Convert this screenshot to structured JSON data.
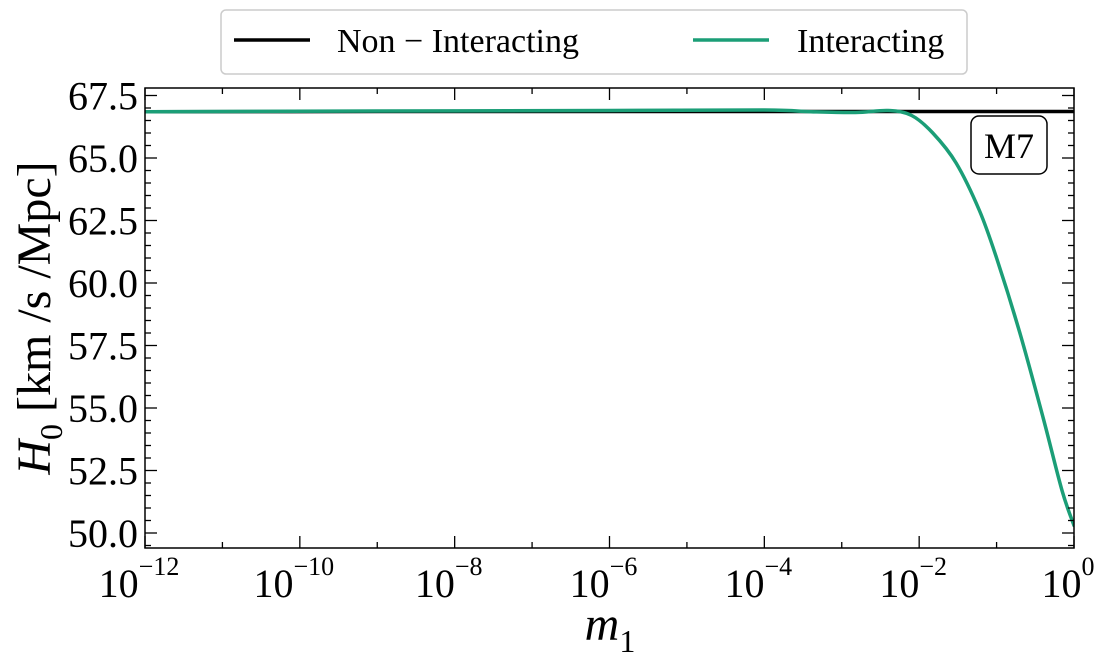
{
  "chart_data": {
    "type": "line",
    "xscale": "log",
    "xlim": [
      1e-12,
      1
    ],
    "ylim": [
      49.4,
      67.8
    ],
    "x_ticks": [
      {
        "base": "10",
        "exp": "−12"
      },
      {
        "base": "10",
        "exp": "−10"
      },
      {
        "base": "10",
        "exp": "−8"
      },
      {
        "base": "10",
        "exp": "−6"
      },
      {
        "base": "10",
        "exp": "−4"
      },
      {
        "base": "10",
        "exp": "−2"
      },
      {
        "base": "10",
        "exp": "0"
      }
    ],
    "x_tick_values": [
      1e-12,
      1e-10,
      1e-08,
      1e-06,
      0.0001,
      0.01,
      1
    ],
    "y_ticks": [
      "50.0",
      "52.5",
      "55.0",
      "57.5",
      "60.0",
      "62.5",
      "65.0",
      "67.5"
    ],
    "y_tick_values": [
      50.0,
      52.5,
      55.0,
      57.5,
      60.0,
      62.5,
      65.0,
      67.5
    ],
    "xlabel": {
      "var": "m",
      "sub": "1"
    },
    "ylabel": {
      "var": "H",
      "sub": "0",
      "unit": " [km /s /Mpc]"
    },
    "annotation": "M7",
    "legend_position": "top-center-outside",
    "grid": false,
    "series": [
      {
        "name": "Non − Interacting",
        "color": "#000000",
        "x": [
          1e-12,
          1e-09,
          1e-06,
          0.0001,
          0.01,
          1
        ],
        "y": [
          66.85,
          66.86,
          66.86,
          66.86,
          66.86,
          66.86
        ]
      },
      {
        "name": "Interacting",
        "color": "#1b9e77",
        "x": [
          1e-12,
          1e-09,
          1e-06,
          0.0001,
          0.0004,
          0.0015,
          0.004,
          0.008,
          0.015,
          0.03,
          0.06,
          0.1,
          0.2,
          0.4,
          0.7,
          1
        ],
        "y": [
          66.85,
          66.88,
          66.9,
          66.92,
          66.85,
          66.82,
          66.9,
          66.7,
          66.0,
          64.8,
          62.9,
          61.0,
          58.0,
          54.6,
          51.7,
          50.3
        ]
      }
    ]
  }
}
